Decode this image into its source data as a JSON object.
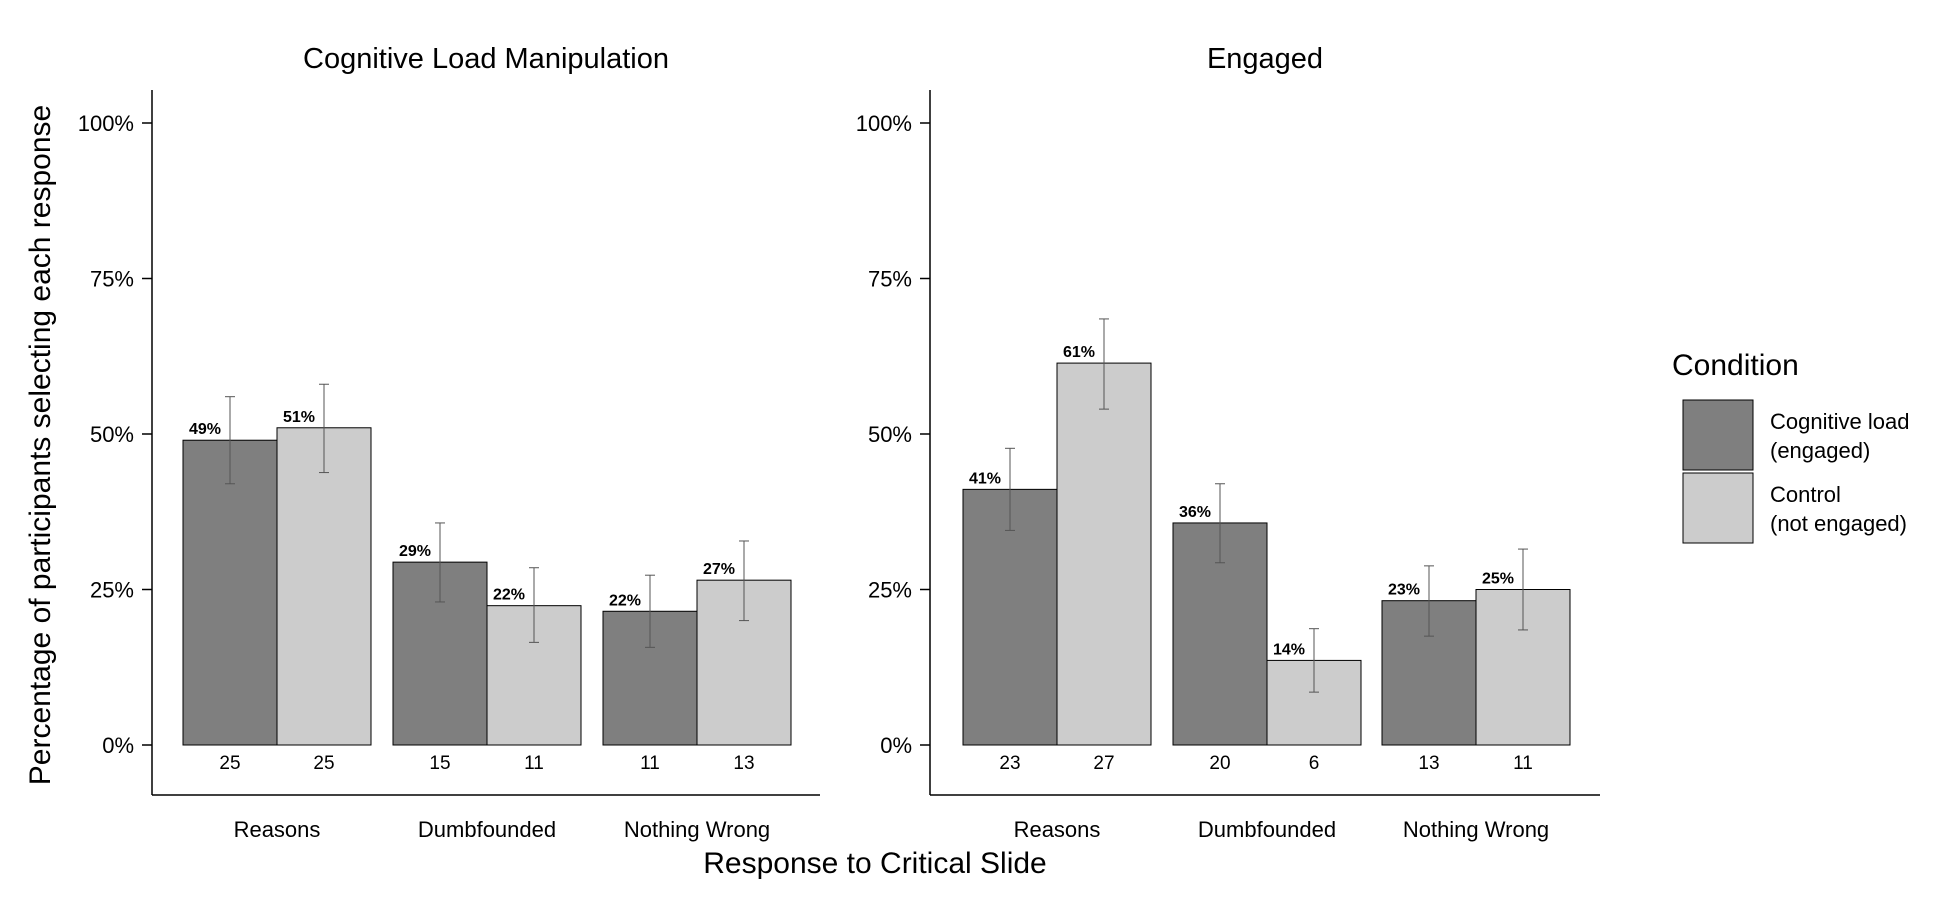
{
  "chart_data": {
    "type": "bar",
    "xlabel": "Response to Critical Slide",
    "ylabel": "Percentage of participants selecting each response",
    "ylim": [
      0,
      1
    ],
    "yticks": [
      0,
      0.25,
      0.5,
      0.75,
      1.0
    ],
    "ytick_labels": [
      "0%",
      "25%",
      "50%",
      "75%",
      "100%"
    ],
    "categories": [
      "Reasons",
      "Dumbfounded",
      "Nothing Wrong"
    ],
    "legend": {
      "title": "Condition",
      "position": "right",
      "entries": [
        {
          "line1": "Cognitive load",
          "line2": "(engaged)",
          "color": "#7f7f7f"
        },
        {
          "line1": "Control",
          "line2": "(not engaged)",
          "color": "#cccccc"
        }
      ]
    },
    "panels": [
      {
        "title": "Cognitive Load Manipulation",
        "series": [
          {
            "values": [
              0.49,
              0.294,
              0.215
            ],
            "labels": [
              "49%",
              "29%",
              "22%"
            ],
            "counts": [
              "25",
              "15",
              "11"
            ],
            "err_low": [
              0.42,
              0.23,
              0.157
            ],
            "err_high": [
              0.56,
              0.357,
              0.273
            ]
          },
          {
            "values": [
              0.51,
              0.224,
              0.265
            ],
            "labels": [
              "51%",
              "22%",
              "27%"
            ],
            "counts": [
              "25",
              "11",
              "13"
            ],
            "err_low": [
              0.438,
              0.165,
              0.2
            ],
            "err_high": [
              0.58,
              0.285,
              0.328
            ]
          }
        ]
      },
      {
        "title": "Engaged",
        "series": [
          {
            "values": [
              0.411,
              0.357,
              0.232
            ],
            "labels": [
              "41%",
              "36%",
              "23%"
            ],
            "counts": [
              "23",
              "20",
              "13"
            ],
            "err_low": [
              0.345,
              0.293,
              0.175
            ],
            "err_high": [
              0.477,
              0.42,
              0.288
            ]
          },
          {
            "values": [
              0.614,
              0.136,
              0.25
            ],
            "labels": [
              "61%",
              "14%",
              "25%"
            ],
            "counts": [
              "27",
              "6",
              "11"
            ],
            "err_low": [
              0.54,
              0.085,
              0.185
            ],
            "err_high": [
              0.685,
              0.187,
              0.315
            ]
          }
        ]
      }
    ]
  }
}
